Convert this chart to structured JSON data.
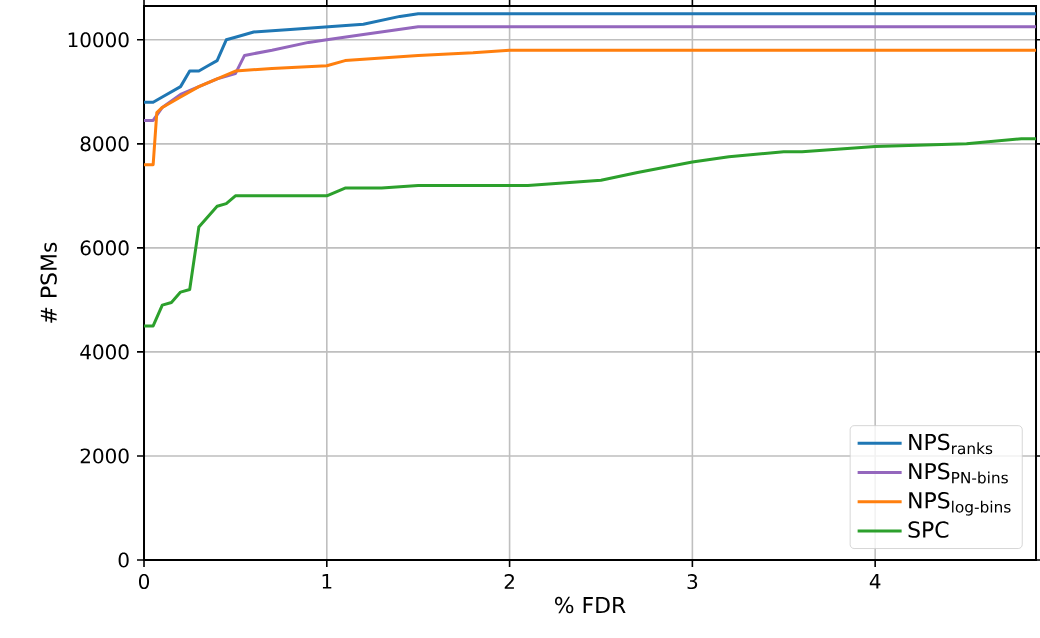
{
  "chart_data": {
    "type": "line",
    "xlabel": "% FDR",
    "ylabel": "# PSMs",
    "xlim": [
      0,
      4.88
    ],
    "ylim": [
      0,
      10650
    ],
    "xticks": [
      0,
      1,
      2,
      3,
      4
    ],
    "yticks": [
      0,
      2000,
      4000,
      6000,
      8000,
      10000
    ],
    "grid": true,
    "legend": "bottom right",
    "series": [
      {
        "name": "NPS$_{ranks}$",
        "color": "#1f77b4",
        "x": [
          0,
          0.05,
          0.1,
          0.2,
          0.25,
          0.3,
          0.35,
          0.4,
          0.45,
          0.5,
          0.6,
          0.8,
          1.0,
          1.2,
          1.4,
          1.5,
          2.0,
          3.0,
          4.0,
          4.88
        ],
        "values": [
          8800,
          8800,
          8900,
          9100,
          9400,
          9400,
          9500,
          9600,
          10000,
          10050,
          10150,
          10200,
          10250,
          10300,
          10450,
          10500,
          10500,
          10500,
          10500,
          10500
        ]
      },
      {
        "name": "NPS$_{PN-bins}$",
        "color": "#9467bd",
        "x": [
          0,
          0.05,
          0.1,
          0.2,
          0.3,
          0.4,
          0.5,
          0.55,
          0.7,
          0.9,
          1.0,
          1.2,
          1.5,
          2.0,
          3.0,
          4.0,
          4.88
        ],
        "values": [
          8450,
          8450,
          8700,
          8950,
          9100,
          9250,
          9350,
          9700,
          9800,
          9950,
          10000,
          10100,
          10250,
          10250,
          10250,
          10250,
          10250
        ]
      },
      {
        "name": "NPS$_{log-bins}$",
        "color": "#ff7f0e",
        "x": [
          0,
          0.05,
          0.07,
          0.1,
          0.2,
          0.3,
          0.4,
          0.5,
          0.7,
          1.0,
          1.1,
          1.5,
          1.8,
          2.0,
          3.0,
          4.0,
          4.88
        ],
        "values": [
          7600,
          7600,
          8600,
          8700,
          8900,
          9100,
          9250,
          9400,
          9450,
          9500,
          9600,
          9700,
          9750,
          9800,
          9800,
          9800,
          9800
        ]
      },
      {
        "name": "SPC",
        "color": "#2ca02c",
        "x": [
          0,
          0.05,
          0.1,
          0.15,
          0.2,
          0.25,
          0.3,
          0.35,
          0.4,
          0.45,
          0.5,
          1.0,
          1.1,
          1.3,
          1.5,
          2.0,
          2.1,
          2.5,
          2.7,
          3.0,
          3.2,
          3.5,
          3.6,
          4.0,
          4.5,
          4.8,
          4.88
        ],
        "values": [
          4500,
          4500,
          4900,
          4950,
          5150,
          5200,
          6400,
          6600,
          6800,
          6850,
          7000,
          7000,
          7150,
          7150,
          7200,
          7200,
          7200,
          7300,
          7450,
          7650,
          7750,
          7850,
          7850,
          7950,
          8000,
          8100,
          8100
        ]
      }
    ]
  }
}
